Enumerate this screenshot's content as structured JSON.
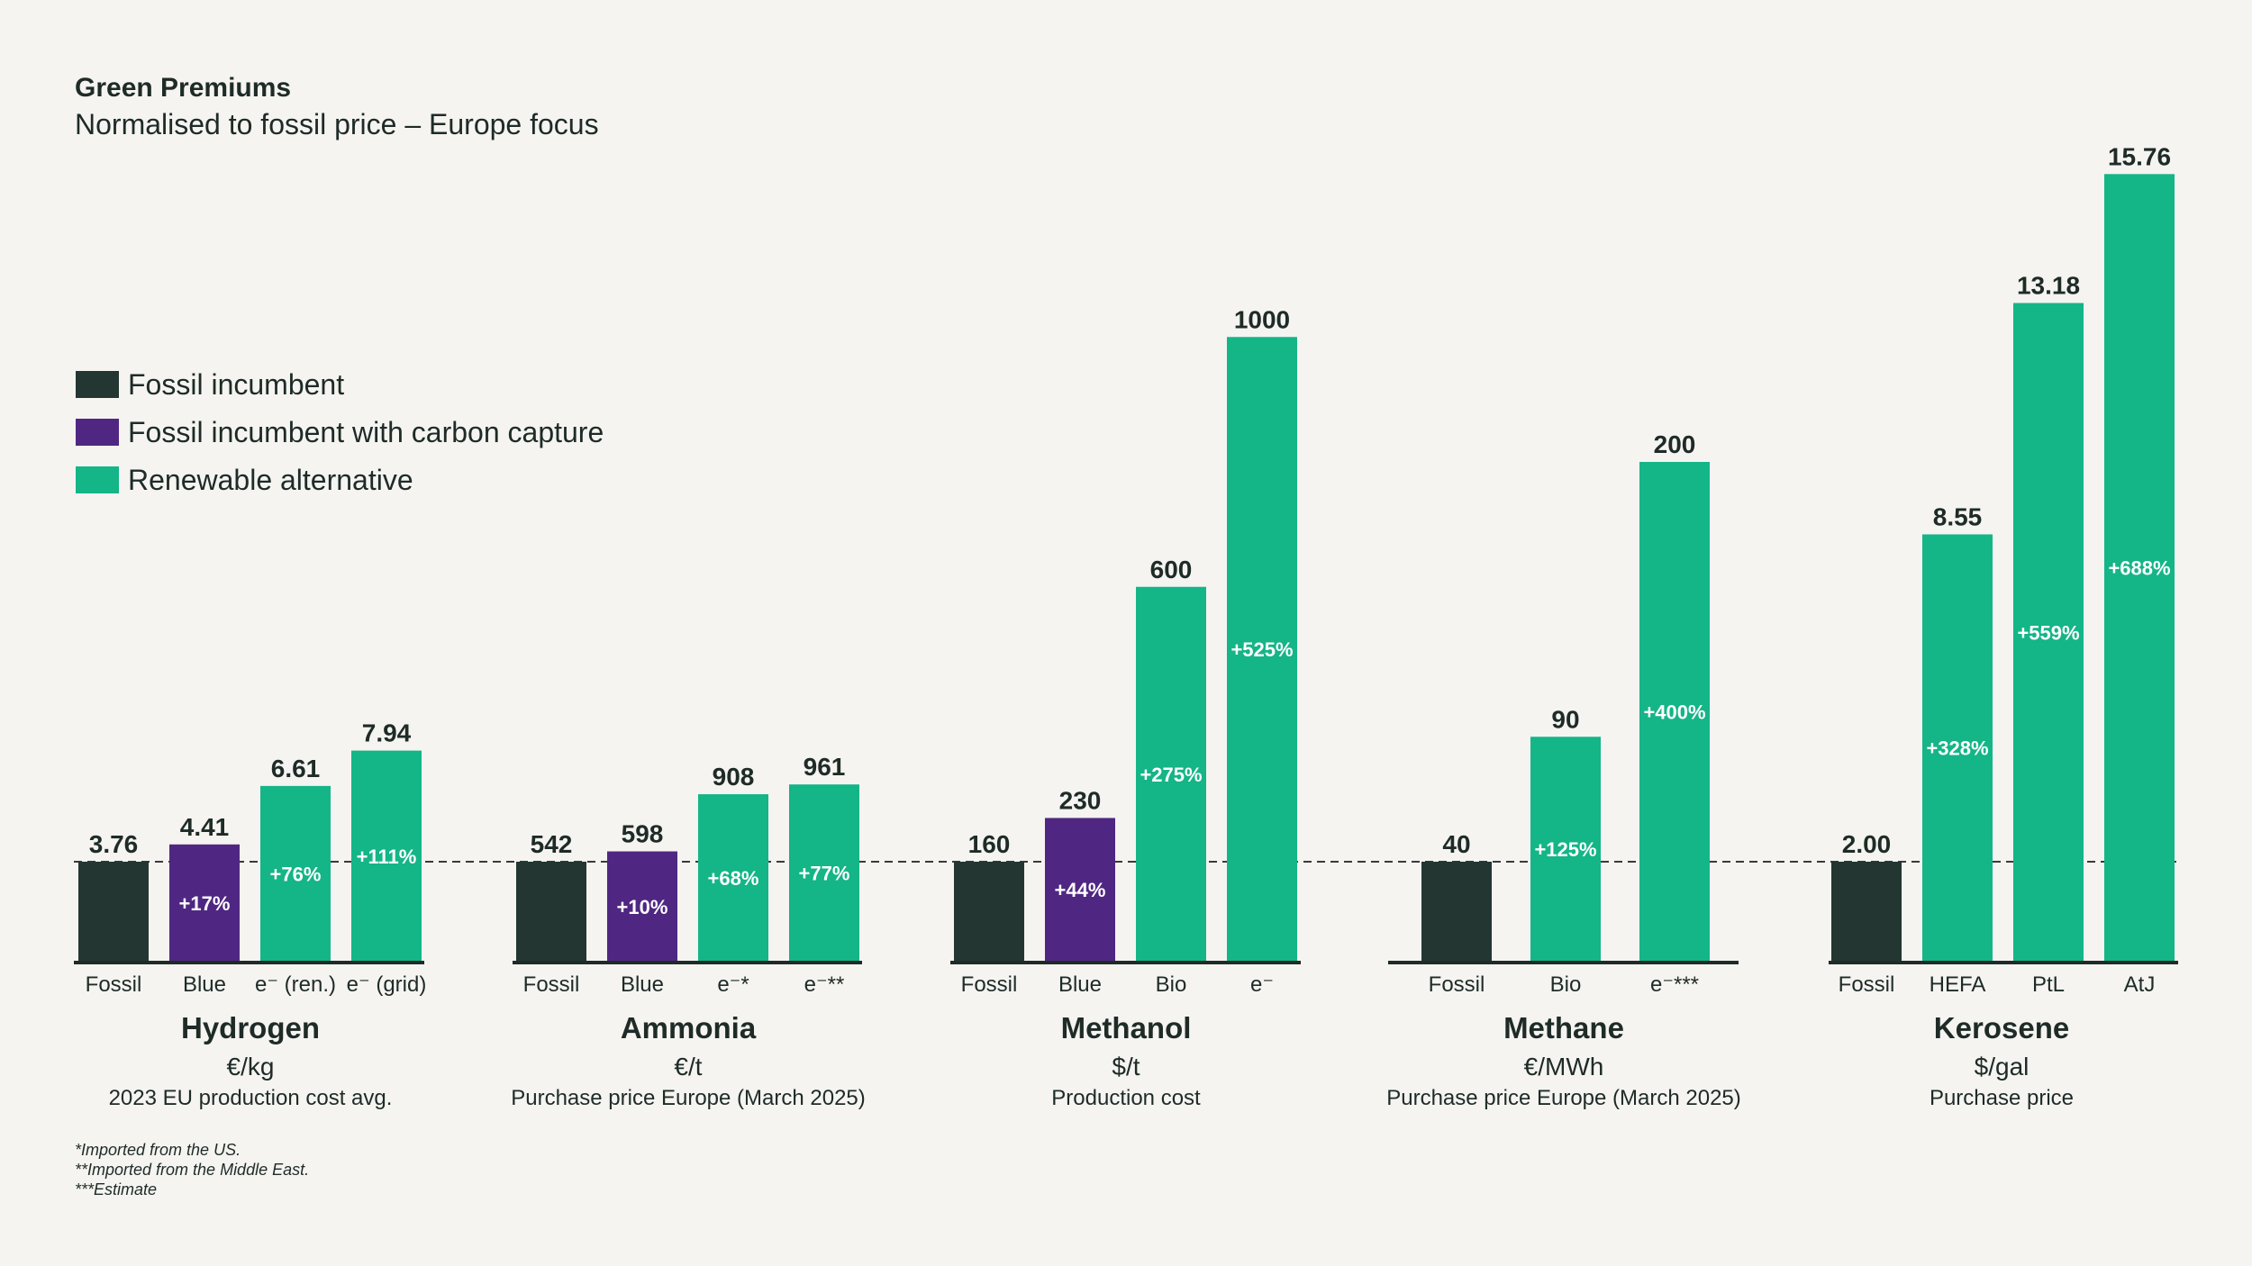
{
  "title": "Green Premiums",
  "subtitle": "Normalised to fossil price – Europe focus",
  "colors": {
    "background": "#f5f4f1",
    "text": "#1e2b27",
    "fossil": "#233632",
    "carbon_capture": "#4f2782",
    "renewable": "#14b587",
    "axis": "#1e2b27",
    "reference_line": "#3a3a3a",
    "inner_label": "#ffffff"
  },
  "legend": {
    "placement": "top-left",
    "items": [
      {
        "label": "Fossil incumbent",
        "color": "#233632"
      },
      {
        "label": "Fossil incumbent with carbon capture",
        "color": "#4f2782"
      },
      {
        "label": "Renewable alternative",
        "color": "#14b587"
      }
    ]
  },
  "footnotes": [
    "*Imported from the US.",
    "**Imported from the Middle East.",
    "***Estimate"
  ],
  "chart_data": [
    {
      "type": "bar",
      "title": "Hydrogen",
      "unit": "€/kg",
      "note": "2023 EU production cost avg.",
      "categories": [
        "Fossil",
        "Blue",
        "e⁻ (ren.)",
        "e⁻ (grid)"
      ],
      "values": [
        3.76,
        4.41,
        6.61,
        7.94
      ],
      "value_labels": [
        "3.76",
        "4.41",
        "6.61",
        "7.94"
      ],
      "premiums": [
        "",
        "+17%",
        "+76%",
        "+111%"
      ],
      "kinds": [
        "fossil",
        "carbon_capture",
        "renewable",
        "renewable"
      ],
      "reference_value": 3.76
    },
    {
      "type": "bar",
      "title": "Ammonia",
      "unit": "€/t",
      "note": "Purchase price Europe (March 2025)",
      "categories": [
        "Fossil",
        "Blue",
        "e⁻*",
        "e⁻**"
      ],
      "values": [
        542,
        598,
        908,
        961
      ],
      "value_labels": [
        "542",
        "598",
        "908",
        "961"
      ],
      "premiums": [
        "",
        "+10%",
        "+68%",
        "+77%"
      ],
      "kinds": [
        "fossil",
        "carbon_capture",
        "renewable",
        "renewable"
      ],
      "reference_value": 542
    },
    {
      "type": "bar",
      "title": "Methanol",
      "unit": "$/t",
      "note": "Production cost",
      "categories": [
        "Fossil",
        "Blue",
        "Bio",
        "e⁻"
      ],
      "values": [
        160,
        230,
        600,
        1000
      ],
      "value_labels": [
        "160",
        "230",
        "600",
        "1000"
      ],
      "premiums": [
        "",
        "+44%",
        "+275%",
        "+525%"
      ],
      "kinds": [
        "fossil",
        "carbon_capture",
        "renewable",
        "renewable"
      ],
      "reference_value": 160
    },
    {
      "type": "bar",
      "title": "Methane",
      "unit": "€/MWh",
      "note": "Purchase price Europe (March 2025)",
      "categories": [
        "Fossil",
        "Bio",
        "e⁻***"
      ],
      "values": [
        40,
        90,
        200
      ],
      "value_labels": [
        "40",
        "90",
        "200"
      ],
      "premiums": [
        "",
        "+125%",
        "+400%"
      ],
      "kinds": [
        "fossil",
        "renewable",
        "renewable"
      ],
      "reference_value": 40
    },
    {
      "type": "bar",
      "title": "Kerosene",
      "unit": "$/gal",
      "note": "Purchase price",
      "categories": [
        "Fossil",
        "HEFA",
        "PtL",
        "AtJ"
      ],
      "values": [
        2.0,
        8.55,
        13.18,
        15.76
      ],
      "value_labels": [
        "2.00",
        "8.55",
        "13.18",
        "15.76"
      ],
      "premiums": [
        "",
        "+328%",
        "+559%",
        "+688%"
      ],
      "kinds": [
        "fossil",
        "renewable",
        "renewable",
        "renewable"
      ],
      "reference_value": 2.0
    }
  ]
}
